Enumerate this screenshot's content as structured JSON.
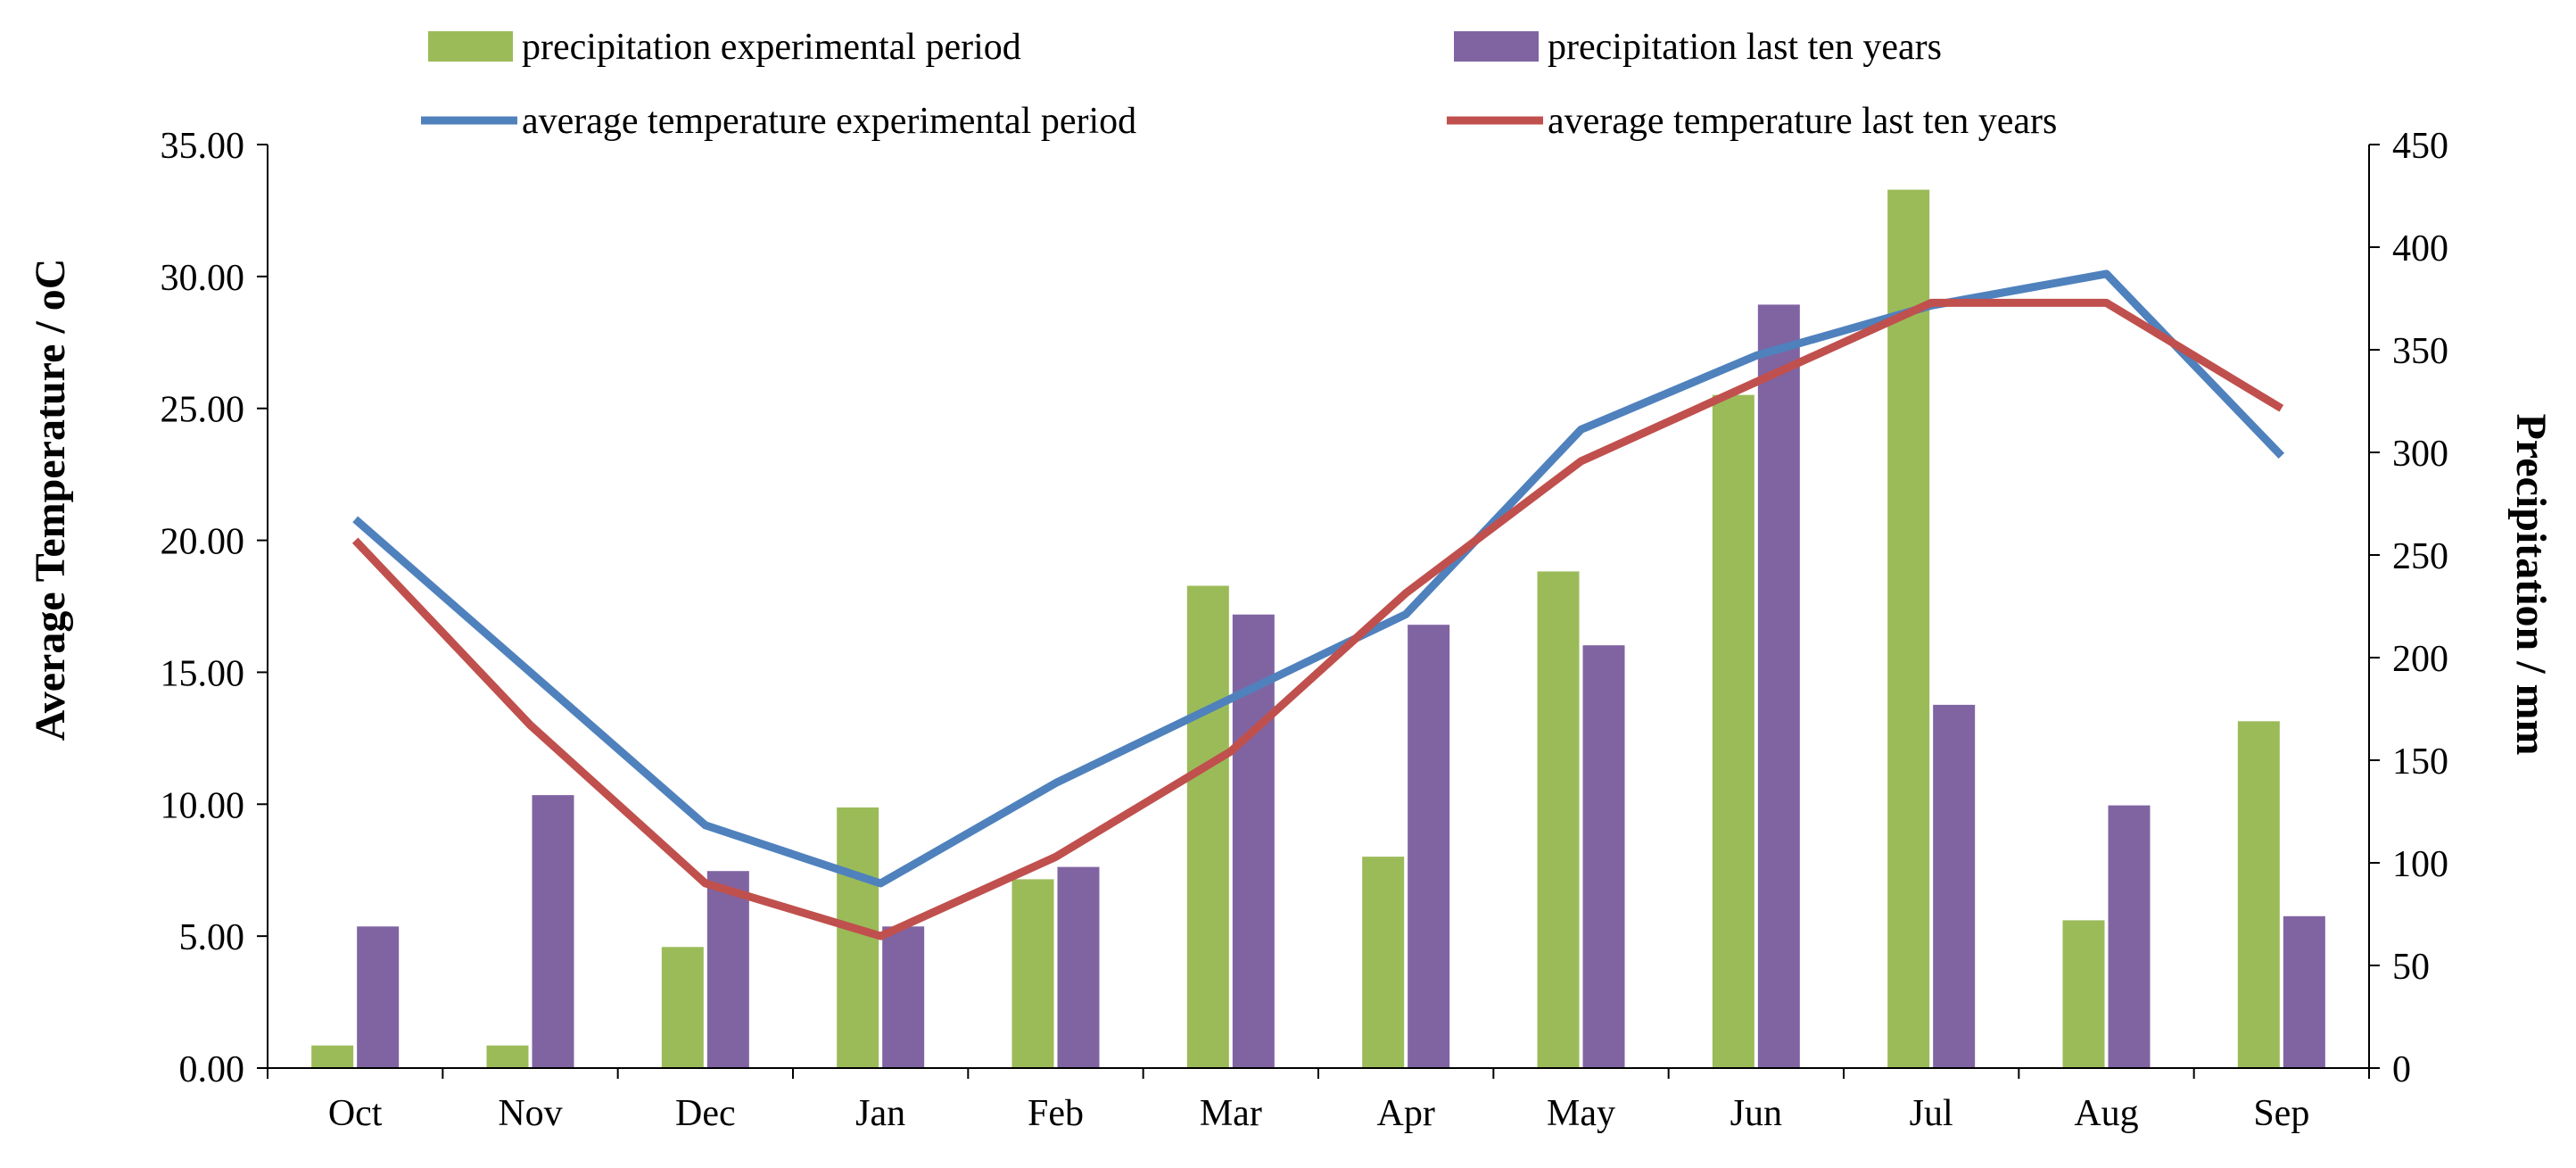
{
  "chart_data": {
    "type": "bar+line",
    "categories": [
      "Oct",
      "Nov",
      "Dec",
      "Jan",
      "Feb",
      "Mar",
      "Apr",
      "May",
      "Jun",
      "Jul",
      "Aug",
      "Sep"
    ],
    "bar_series": [
      {
        "name": "precipitation experimental period",
        "color": "#9bbb59",
        "axis": "right",
        "values": [
          11,
          11,
          59,
          127,
          92,
          235,
          103,
          242,
          328,
          428,
          72,
          169
        ]
      },
      {
        "name": "precipitation last ten years",
        "color": "#8064a2",
        "axis": "right",
        "values": [
          69,
          133,
          96,
          69,
          98,
          221,
          216,
          206,
          372,
          177,
          128,
          74
        ]
      }
    ],
    "line_series": [
      {
        "name": "average temperature experimental period",
        "color": "#4f81bd",
        "axis": "left",
        "values": [
          20.8,
          15.0,
          9.2,
          7.0,
          10.8,
          14.0,
          17.2,
          24.2,
          27.0,
          28.9,
          30.1,
          23.2
        ]
      },
      {
        "name": "average temperature last ten years",
        "color": "#c0504d",
        "axis": "left",
        "values": [
          20.0,
          13.0,
          7.0,
          5.0,
          8.0,
          12.0,
          18.0,
          23.0,
          26.0,
          29.0,
          29.0,
          25.0
        ]
      }
    ],
    "y_left": {
      "label": "Average Temperature / ",
      "label_unit": "oC",
      "range": [
        0,
        35
      ],
      "ticks": [
        "0.00",
        "5.00",
        "10.00",
        "15.00",
        "20.00",
        "25.00",
        "30.00",
        "35.00"
      ]
    },
    "y_right": {
      "label": "Precipitation / mm",
      "range": [
        0,
        450
      ],
      "ticks": [
        "0",
        "50",
        "100",
        "150",
        "200",
        "250",
        "300",
        "350",
        "400",
        "450"
      ]
    },
    "legend": [
      {
        "label": "precipitation experimental period",
        "kind": "bar",
        "color": "#9bbb59"
      },
      {
        "label": "precipitation last ten years",
        "kind": "bar",
        "color": "#8064a2"
      },
      {
        "label": "average temperature experimental period",
        "kind": "line",
        "color": "#4f81bd"
      },
      {
        "label": "average temperature last ten years",
        "kind": "line",
        "color": "#c0504d"
      }
    ],
    "legend_position": "top",
    "grid": false
  }
}
